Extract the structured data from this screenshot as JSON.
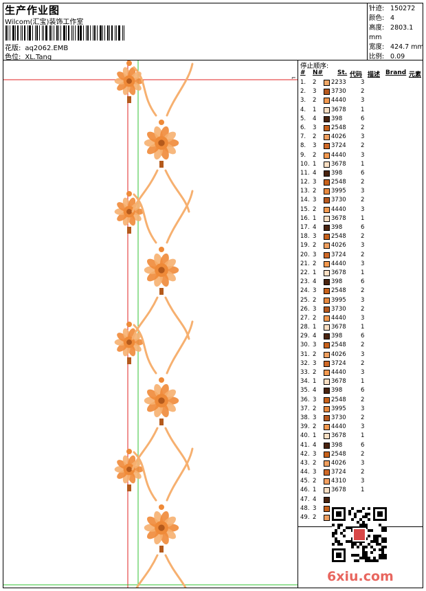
{
  "header": {
    "title": "生产作业图",
    "company": "Wilcom(汇宝)装饰工作室",
    "design_label": "花版:",
    "design_value": "aq2062.EMB",
    "color_label": "色位:",
    "color_value": "XL.Tang"
  },
  "stats": [
    {
      "label": "针迹:",
      "value": "150272"
    },
    {
      "label": "颜色:",
      "value": "4"
    },
    {
      "label": "高度:",
      "value": "2803.1 mm"
    },
    {
      "label": "宽度:",
      "value": "424.7 mm"
    },
    {
      "label": "比例:",
      "value": "0.09"
    }
  ],
  "stop_sequence": {
    "heading": "停止顺序:",
    "columns": {
      "num": "#",
      "n": "N#",
      "st": "St.",
      "code": "代码",
      "desc": "描述",
      "brand": "Brand",
      "element": "元素"
    },
    "rows": [
      {
        "num": "1.",
        "n": "2",
        "code": "2233",
        "st": "3",
        "color": "#f0a868"
      },
      {
        "num": "2.",
        "n": "3",
        "code": "3730",
        "st": "2",
        "color": "#b85a20"
      },
      {
        "num": "3.",
        "n": "2",
        "code": "4440",
        "st": "3",
        "color": "#f49a50"
      },
      {
        "num": "4.",
        "n": "1",
        "code": "3678",
        "st": "1",
        "color": "#fbe0c4"
      },
      {
        "num": "5.",
        "n": "4",
        "code": "398",
        "st": "6",
        "color": "#4a2410"
      },
      {
        "num": "6.",
        "n": "3",
        "code": "2548",
        "st": "2",
        "color": "#c8621c"
      },
      {
        "num": "7.",
        "n": "2",
        "code": "4026",
        "st": "3",
        "color": "#f0a060"
      },
      {
        "num": "8.",
        "n": "3",
        "code": "3724",
        "st": "2",
        "color": "#d06a28"
      },
      {
        "num": "9.",
        "n": "2",
        "code": "4440",
        "st": "3",
        "color": "#f49a50"
      },
      {
        "num": "10.",
        "n": "1",
        "code": "3678",
        "st": "1",
        "color": "#fbe0c4"
      },
      {
        "num": "11.",
        "n": "4",
        "code": "398",
        "st": "6",
        "color": "#4a2410"
      },
      {
        "num": "12.",
        "n": "3",
        "code": "2548",
        "st": "2",
        "color": "#c8621c"
      },
      {
        "num": "13.",
        "n": "2",
        "code": "3995",
        "st": "3",
        "color": "#e88a40"
      },
      {
        "num": "14.",
        "n": "3",
        "code": "3730",
        "st": "2",
        "color": "#b85a20"
      },
      {
        "num": "15.",
        "n": "2",
        "code": "4440",
        "st": "3",
        "color": "#f49a50"
      },
      {
        "num": "16.",
        "n": "1",
        "code": "3678",
        "st": "1",
        "color": "#fbe0c4"
      },
      {
        "num": "17.",
        "n": "4",
        "code": "398",
        "st": "6",
        "color": "#4a2410"
      },
      {
        "num": "18.",
        "n": "3",
        "code": "2548",
        "st": "2",
        "color": "#c8621c"
      },
      {
        "num": "19.",
        "n": "2",
        "code": "4026",
        "st": "3",
        "color": "#f0a060"
      },
      {
        "num": "20.",
        "n": "3",
        "code": "3724",
        "st": "2",
        "color": "#d06a28"
      },
      {
        "num": "21.",
        "n": "2",
        "code": "4440",
        "st": "3",
        "color": "#f49a50"
      },
      {
        "num": "22.",
        "n": "1",
        "code": "3678",
        "st": "1",
        "color": "#fbe0c4"
      },
      {
        "num": "23.",
        "n": "4",
        "code": "398",
        "st": "6",
        "color": "#4a2410"
      },
      {
        "num": "24.",
        "n": "3",
        "code": "2548",
        "st": "2",
        "color": "#c8621c"
      },
      {
        "num": "25.",
        "n": "2",
        "code": "3995",
        "st": "3",
        "color": "#e88a40"
      },
      {
        "num": "26.",
        "n": "3",
        "code": "3730",
        "st": "2",
        "color": "#b85a20"
      },
      {
        "num": "27.",
        "n": "2",
        "code": "4440",
        "st": "3",
        "color": "#f49a50"
      },
      {
        "num": "28.",
        "n": "1",
        "code": "3678",
        "st": "1",
        "color": "#fbe0c4"
      },
      {
        "num": "29.",
        "n": "4",
        "code": "398",
        "st": "6",
        "color": "#4a2410"
      },
      {
        "num": "30.",
        "n": "3",
        "code": "2548",
        "st": "2",
        "color": "#c8621c"
      },
      {
        "num": "31.",
        "n": "2",
        "code": "4026",
        "st": "3",
        "color": "#f0a060"
      },
      {
        "num": "32.",
        "n": "3",
        "code": "3724",
        "st": "2",
        "color": "#d06a28"
      },
      {
        "num": "33.",
        "n": "2",
        "code": "4440",
        "st": "3",
        "color": "#f49a50"
      },
      {
        "num": "34.",
        "n": "1",
        "code": "3678",
        "st": "1",
        "color": "#fbe0c4"
      },
      {
        "num": "35.",
        "n": "4",
        "code": "398",
        "st": "6",
        "color": "#4a2410"
      },
      {
        "num": "36.",
        "n": "3",
        "code": "2548",
        "st": "2",
        "color": "#c8621c"
      },
      {
        "num": "37.",
        "n": "2",
        "code": "3995",
        "st": "3",
        "color": "#e88a40"
      },
      {
        "num": "38.",
        "n": "3",
        "code": "3730",
        "st": "2",
        "color": "#b85a20"
      },
      {
        "num": "39.",
        "n": "2",
        "code": "4440",
        "st": "3",
        "color": "#f49a50"
      },
      {
        "num": "40.",
        "n": "1",
        "code": "3678",
        "st": "1",
        "color": "#fbe0c4"
      },
      {
        "num": "41.",
        "n": "4",
        "code": "398",
        "st": "6",
        "color": "#4a2410"
      },
      {
        "num": "42.",
        "n": "3",
        "code": "2548",
        "st": "2",
        "color": "#c8621c"
      },
      {
        "num": "43.",
        "n": "2",
        "code": "4026",
        "st": "3",
        "color": "#f0a060"
      },
      {
        "num": "44.",
        "n": "3",
        "code": "3724",
        "st": "2",
        "color": "#d06a28"
      },
      {
        "num": "45.",
        "n": "2",
        "code": "4310",
        "st": "3",
        "color": "#f4a060"
      },
      {
        "num": "46.",
        "n": "1",
        "code": "3678",
        "st": "1",
        "color": "#fbe0c4"
      },
      {
        "num": "47.",
        "n": "4",
        "code": "",
        "st": "",
        "color": "#4a2410"
      },
      {
        "num": "48.",
        "n": "3",
        "code": "",
        "st": "",
        "color": "#c8621c"
      },
      {
        "num": "49.",
        "n": "2",
        "code": "",
        "st": "",
        "color": "#f0a060"
      }
    ]
  },
  "colors": {
    "guide_red": "#e02020",
    "guide_green": "#30c030",
    "motif_light": "#f6b070",
    "motif_mid": "#ef8a38",
    "motif_dark": "#b45a1c"
  },
  "watermark": "6xiu.com"
}
